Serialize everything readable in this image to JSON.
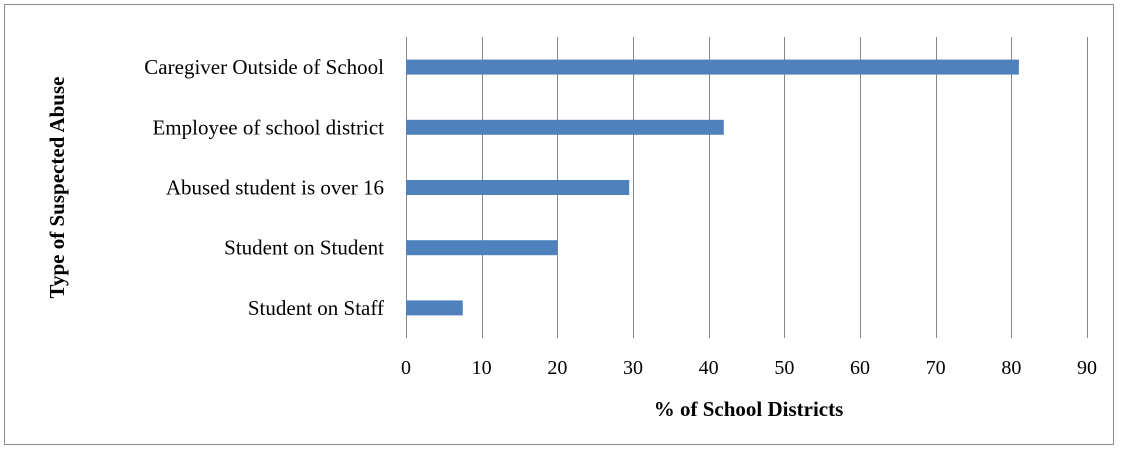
{
  "chart_data": {
    "type": "bar",
    "orientation": "horizontal",
    "categories": [
      "Caregiver Outside of School",
      "Employee of school district",
      "Abused student is over 16",
      "Student on Student",
      "Student on Staff"
    ],
    "values": [
      81,
      42,
      29.5,
      20,
      7.5
    ],
    "xlabel": "% of School Districts",
    "ylabel": "Type of Suspected Abuse",
    "xlim": [
      0,
      90
    ],
    "xticks": [
      "0",
      "10",
      "20",
      "30",
      "40",
      "50",
      "60",
      "70",
      "80",
      "90"
    ],
    "grid": "vertical",
    "legend": "none",
    "bar_color": "#4f81bd",
    "grid_color": "#868686"
  }
}
